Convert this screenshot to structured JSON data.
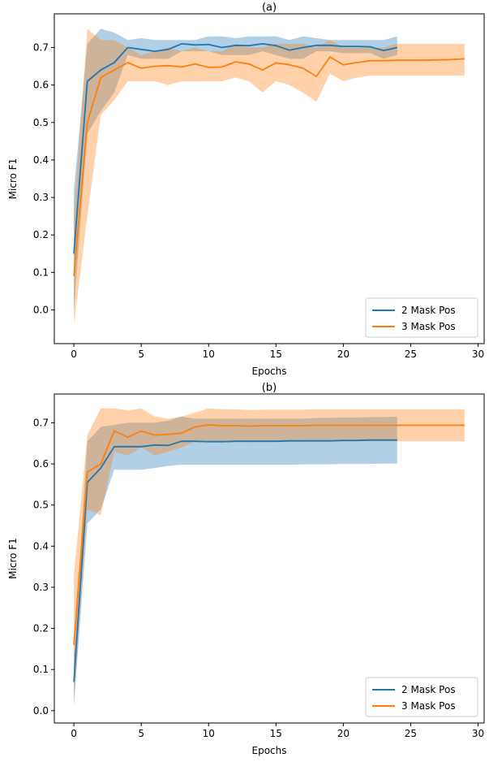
{
  "chart_data": [
    {
      "type": "line",
      "title": "(a)",
      "xlabel": "Epochs",
      "ylabel": "Micro F1",
      "xlim": [
        -1.45,
        30.45
      ],
      "ylim": [
        -0.09,
        0.79
      ],
      "xticks": [
        0,
        5,
        10,
        15,
        20,
        25,
        30
      ],
      "yticks": [
        0.0,
        0.1,
        0.2,
        0.3,
        0.4,
        0.5,
        0.6,
        0.7
      ],
      "tick_labels_x": [
        "0",
        "5",
        "10",
        "15",
        "20",
        "25",
        "30"
      ],
      "tick_labels_y": [
        "0.0",
        "0.1",
        "0.2",
        "0.3",
        "0.4",
        "0.5",
        "0.6",
        "0.7"
      ],
      "grid": false,
      "legend": "lower-right",
      "series": [
        {
          "name": "2 Mask Pos",
          "color": "#1f77b4",
          "x": [
            0,
            1,
            2,
            3,
            4,
            5,
            6,
            7,
            8,
            9,
            10,
            11,
            12,
            13,
            14,
            15,
            16,
            17,
            18,
            19,
            20,
            21,
            22,
            23,
            24
          ],
          "y": [
            0.15,
            0.61,
            0.64,
            0.66,
            0.7,
            0.695,
            0.69,
            0.695,
            0.71,
            0.707,
            0.708,
            0.7,
            0.706,
            0.705,
            0.71,
            0.705,
            0.693,
            0.7,
            0.706,
            0.706,
            0.703,
            0.703,
            0.702,
            0.692,
            0.7
          ],
          "upper": [
            0.32,
            0.71,
            0.75,
            0.74,
            0.72,
            0.725,
            0.72,
            0.72,
            0.72,
            0.72,
            0.73,
            0.73,
            0.725,
            0.73,
            0.73,
            0.73,
            0.72,
            0.73,
            0.725,
            0.72,
            0.72,
            0.72,
            0.72,
            0.72,
            0.73
          ],
          "lower": [
            0.0,
            0.47,
            0.53,
            0.58,
            0.68,
            0.67,
            0.67,
            0.67,
            0.69,
            0.69,
            0.69,
            0.68,
            0.68,
            0.68,
            0.69,
            0.68,
            0.67,
            0.67,
            0.69,
            0.69,
            0.685,
            0.685,
            0.685,
            0.67,
            0.68
          ]
        },
        {
          "name": "3 Mask Pos",
          "color": "#ff7f0e",
          "x": [
            0,
            1,
            2,
            3,
            4,
            5,
            6,
            7,
            8,
            9,
            10,
            11,
            12,
            13,
            14,
            15,
            16,
            17,
            18,
            19,
            20,
            21,
            22,
            23,
            24,
            25,
            26,
            27,
            28,
            29
          ],
          "y": [
            0.09,
            0.5,
            0.62,
            0.64,
            0.66,
            0.645,
            0.65,
            0.652,
            0.648,
            0.656,
            0.647,
            0.648,
            0.662,
            0.656,
            0.64,
            0.659,
            0.654,
            0.645,
            0.623,
            0.675,
            0.654,
            0.66,
            0.665,
            0.665,
            0.666,
            0.666,
            0.666,
            0.667,
            0.668,
            0.67
          ],
          "upper": [
            0.25,
            0.75,
            0.72,
            0.72,
            0.7,
            0.68,
            0.69,
            0.7,
            0.69,
            0.7,
            0.69,
            0.69,
            0.71,
            0.7,
            0.7,
            0.71,
            0.71,
            0.71,
            0.7,
            0.72,
            0.7,
            0.7,
            0.7,
            0.7,
            0.71,
            0.71,
            0.71,
            0.71,
            0.71,
            0.71
          ],
          "lower": [
            -0.04,
            0.25,
            0.52,
            0.56,
            0.61,
            0.61,
            0.61,
            0.6,
            0.61,
            0.61,
            0.61,
            0.61,
            0.62,
            0.61,
            0.58,
            0.61,
            0.6,
            0.58,
            0.555,
            0.63,
            0.61,
            0.62,
            0.625,
            0.625,
            0.625,
            0.625,
            0.625,
            0.625,
            0.625,
            0.625
          ]
        }
      ]
    },
    {
      "type": "line",
      "title": "(b)",
      "xlabel": "Epochs",
      "ylabel": "Micro F1",
      "xlim": [
        -1.45,
        30.45
      ],
      "ylim": [
        -0.03,
        0.77
      ],
      "xticks": [
        0,
        5,
        10,
        15,
        20,
        25,
        30
      ],
      "yticks": [
        0.0,
        0.1,
        0.2,
        0.3,
        0.4,
        0.5,
        0.6,
        0.7
      ],
      "tick_labels_x": [
        "0",
        "5",
        "10",
        "15",
        "20",
        "25",
        "30"
      ],
      "tick_labels_y": [
        "0.0",
        "0.1",
        "0.2",
        "0.3",
        "0.4",
        "0.5",
        "0.6",
        "0.7"
      ],
      "grid": false,
      "legend": "lower-right",
      "series": [
        {
          "name": "2 Mask Pos",
          "color": "#1f77b4",
          "x": [
            0,
            1,
            2,
            3,
            4,
            5,
            6,
            7,
            8,
            9,
            10,
            11,
            12,
            13,
            14,
            15,
            16,
            17,
            18,
            19,
            20,
            21,
            22,
            23,
            24
          ],
          "y": [
            0.07,
            0.555,
            0.59,
            0.642,
            0.642,
            0.642,
            0.646,
            0.645,
            0.655,
            0.655,
            0.654,
            0.654,
            0.655,
            0.655,
            0.655,
            0.655,
            0.656,
            0.656,
            0.656,
            0.656,
            0.657,
            0.657,
            0.658,
            0.658,
            0.658
          ],
          "upper": [
            0.14,
            0.655,
            0.69,
            0.695,
            0.7,
            0.7,
            0.7,
            0.705,
            0.715,
            0.71,
            0.71,
            0.71,
            0.71,
            0.71,
            0.71,
            0.71,
            0.71,
            0.71,
            0.712,
            0.712,
            0.713,
            0.713,
            0.714,
            0.714,
            0.715
          ],
          "lower": [
            0.01,
            0.455,
            0.49,
            0.586,
            0.586,
            0.586,
            0.59,
            0.595,
            0.598,
            0.598,
            0.598,
            0.598,
            0.598,
            0.598,
            0.598,
            0.598,
            0.598,
            0.599,
            0.599,
            0.599,
            0.6,
            0.6,
            0.6,
            0.601,
            0.601
          ]
        },
        {
          "name": "3 Mask Pos",
          "color": "#ff7f0e",
          "x": [
            0,
            1,
            2,
            3,
            4,
            5,
            6,
            7,
            8,
            9,
            10,
            11,
            12,
            13,
            14,
            15,
            16,
            17,
            18,
            19,
            20,
            21,
            22,
            23,
            24,
            25,
            26,
            27,
            28,
            29
          ],
          "y": [
            0.16,
            0.58,
            0.6,
            0.68,
            0.665,
            0.68,
            0.67,
            0.672,
            0.675,
            0.69,
            0.695,
            0.693,
            0.693,
            0.692,
            0.693,
            0.693,
            0.693,
            0.693,
            0.694,
            0.694,
            0.694,
            0.694,
            0.694,
            0.694,
            0.694,
            0.694,
            0.694,
            0.694,
            0.694,
            0.694
          ],
          "upper": [
            0.33,
            0.67,
            0.735,
            0.735,
            0.73,
            0.735,
            0.715,
            0.71,
            0.715,
            0.725,
            0.735,
            0.733,
            0.733,
            0.731,
            0.732,
            0.732,
            0.732,
            0.732,
            0.733,
            0.733,
            0.733,
            0.733,
            0.733,
            0.733,
            0.733,
            0.733,
            0.733,
            0.733,
            0.733,
            0.733
          ],
          "lower": [
            0.02,
            0.49,
            0.475,
            0.63,
            0.62,
            0.64,
            0.62,
            0.63,
            0.64,
            0.655,
            0.655,
            0.654,
            0.654,
            0.653,
            0.654,
            0.654,
            0.654,
            0.654,
            0.655,
            0.655,
            0.655,
            0.655,
            0.655,
            0.655,
            0.655,
            0.655,
            0.655,
            0.655,
            0.655,
            0.655
          ]
        }
      ]
    }
  ]
}
